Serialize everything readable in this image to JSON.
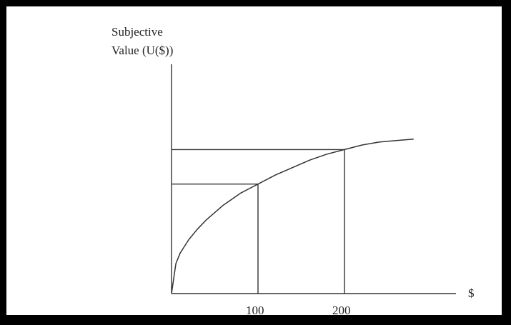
{
  "chart_data": {
    "type": "line",
    "title": "",
    "ylabel_lines": [
      "Subjective",
      "Value (U($))"
    ],
    "xlabel": "$",
    "x_ticks": [
      {
        "value": 100,
        "label": "100"
      },
      {
        "value": 200,
        "label": "200"
      }
    ],
    "series": [
      {
        "x": [
          0,
          5,
          10,
          20,
          30,
          40,
          50,
          60,
          70,
          80,
          90,
          100,
          120,
          140,
          160,
          180,
          200,
          220,
          240,
          260,
          280
        ],
        "y": [
          0,
          0.2,
          0.27,
          0.36,
          0.43,
          0.49,
          0.54,
          0.59,
          0.63,
          0.67,
          0.7,
          0.73,
          0.79,
          0.84,
          0.89,
          0.93,
          0.96,
          0.99,
          1.01,
          1.02,
          1.03
        ]
      }
    ],
    "reference_lines": [
      {
        "x": 100,
        "y": 0.73
      },
      {
        "x": 200,
        "y": 0.96
      }
    ],
    "xlim": [
      0,
      310
    ],
    "ylim": [
      0,
      1.45
    ],
    "colors": {
      "border": "#000000",
      "background": "#ffffff",
      "lines": "#333333"
    }
  }
}
